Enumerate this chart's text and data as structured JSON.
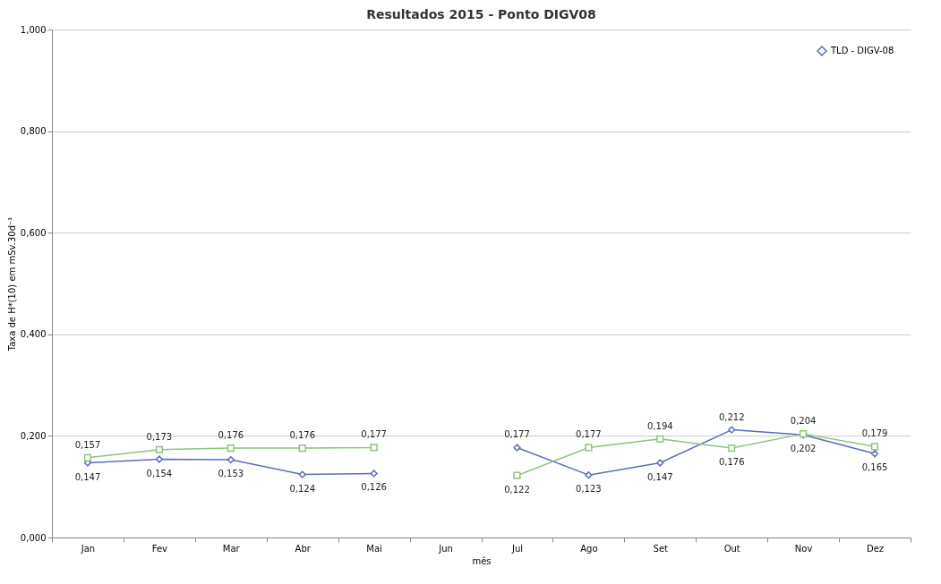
{
  "chart_data": {
    "type": "line",
    "title": "Resultados 2015 - Ponto DIGV08",
    "xlabel": "mês",
    "ylabel": "Taxa de H*(10) em mSv.30d⁻¹",
    "categories": [
      "Jan",
      "Fev",
      "Mar",
      "Abr",
      "Mai",
      "Jun",
      "Jul",
      "Ago",
      "Set",
      "Out",
      "Nov",
      "Dez"
    ],
    "series": [
      {
        "name": "TLD - DIGV-08",
        "color": "#5b6dbd",
        "marker": "diamond",
        "values": [
          0.147,
          0.154,
          0.153,
          0.124,
          0.126,
          null,
          0.177,
          0.123,
          0.147,
          0.212,
          0.202,
          0.165
        ],
        "value_labels": [
          "0,147",
          "0,154",
          "0,153",
          "0,124",
          "0,126",
          null,
          "0,177",
          "0,123",
          "0,147",
          "0,212",
          "0,202",
          "0,165"
        ]
      },
      {
        "color": "#8cc57a",
        "marker": "square",
        "values": [
          0.157,
          0.173,
          0.176,
          0.176,
          0.177,
          null,
          0.122,
          0.177,
          0.194,
          0.176,
          0.204,
          0.179
        ],
        "value_labels": [
          "0,157",
          "0,173",
          "0,176",
          "0,176",
          "0,177",
          null,
          "0,122",
          "0,177",
          "0,194",
          "0,176",
          "0,204",
          "0,179"
        ]
      }
    ],
    "ylim": [
      0,
      1
    ],
    "yticks": [
      {
        "value": 0,
        "label": "0,000"
      },
      {
        "value": 0.2,
        "label": "0,200"
      },
      {
        "value": 0.4,
        "label": "0,400"
      },
      {
        "value": 0.6,
        "label": "0,600"
      },
      {
        "value": 0.8,
        "label": "0,800"
      },
      {
        "value": 1,
        "label": "1,000"
      }
    ],
    "grid": "y",
    "legend": "top right"
  }
}
